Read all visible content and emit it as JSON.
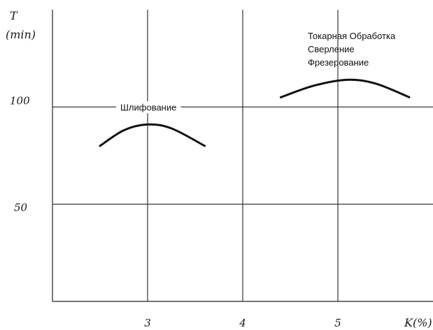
{
  "chart_data": {
    "type": "line",
    "ylabel_symbol": "T",
    "ylabel_unit": "(min)",
    "xlabel": "K(%)",
    "x_ticks": [
      "3",
      "4",
      "5"
    ],
    "y_ticks": [
      "100",
      "50"
    ],
    "xlim": [
      2,
      6
    ],
    "ylim": [
      0,
      150
    ],
    "grid": true,
    "series": [
      {
        "name": "Шлифование",
        "x": [
          2.5,
          2.75,
          3.0,
          3.25,
          3.6
        ],
        "y": [
          80,
          88,
          91,
          89,
          80
        ]
      },
      {
        "name": "Токарная Обработка Сверление Фрезерование",
        "x": [
          4.4,
          4.75,
          5.1,
          5.4,
          5.75
        ],
        "y": [
          105,
          111,
          114,
          112,
          105
        ]
      }
    ],
    "annotations": [
      {
        "lines": [
          "Шлифование"
        ]
      },
      {
        "lines": [
          "Токарная Обработка",
          "Сверление",
          "Фрезерование"
        ]
      }
    ]
  }
}
